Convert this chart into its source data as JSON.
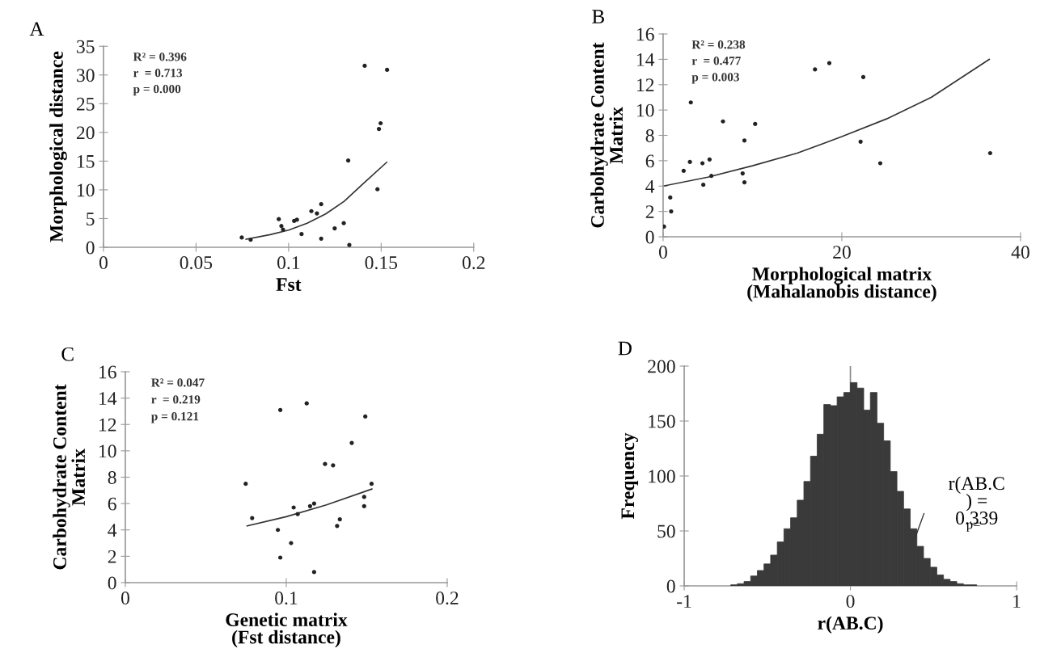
{
  "chart_data": [
    {
      "type": "scatter",
      "title": "A",
      "xlabel": "Fst",
      "ylabel": "Morphological distance",
      "xlim": [
        0,
        0.2
      ],
      "xticks": [
        0,
        0.05,
        0.1,
        0.15,
        0.2
      ],
      "ylim": [
        0,
        35
      ],
      "yticks": [
        0,
        5,
        10,
        15,
        20,
        25,
        30,
        35
      ],
      "grid": false,
      "annotations": [
        "R² = 0.396",
        "r  = 0.713",
        "p = 0.000"
      ],
      "series": [
        {
          "type": "scatter",
          "marker": "circle",
          "color": "#222222",
          "x": [
            0.0747,
            0.0795,
            0.0947,
            0.0961,
            0.097,
            0.103,
            0.1045,
            0.107,
            0.1123,
            0.1153,
            0.1176,
            0.1176,
            0.1249,
            0.1298,
            0.1322,
            0.1328,
            0.1411,
            0.148,
            0.1488,
            0.1497,
            0.1532
          ],
          "values": [
            1.7,
            1.3,
            4.9,
            3.7,
            3.1,
            4.6,
            4.8,
            2.3,
            6.3,
            5.9,
            7.5,
            1.5,
            3.3,
            4.2,
            15.1,
            0.4,
            31.6,
            10.1,
            20.6,
            21.6,
            30.9
          ]
        },
        {
          "type": "line",
          "color": "#333333",
          "x": [
            0.077,
            0.09,
            0.1,
            0.11,
            0.12,
            0.13,
            0.14,
            0.153
          ],
          "values": [
            1.4,
            2.2,
            3.0,
            4.2,
            5.8,
            8.0,
            11.0,
            14.8
          ]
        }
      ]
    },
    {
      "type": "scatter",
      "title": "B",
      "xlabel": "Morphological matrix\n(Mahalanobis distance)",
      "ylabel": "Carbohydrate Content\nMatrix",
      "xlim": [
        0,
        40
      ],
      "xticks": [
        0,
        20,
        40
      ],
      "ylim": [
        0,
        16
      ],
      "yticks": [
        0,
        2,
        4,
        6,
        8,
        10,
        12,
        14,
        16
      ],
      "grid": false,
      "annotations": [
        "R² = 0.238",
        "r  = 0.477",
        "p = 0.003"
      ],
      "series": [
        {
          "type": "scatter",
          "marker": "circle",
          "color": "#222222",
          "x": [
            0.1,
            0.8,
            0.9,
            2.3,
            3.0,
            3.1,
            4.4,
            4.5,
            5.2,
            5.4,
            6.7,
            8.9,
            9.1,
            9.1,
            10.3,
            17.0,
            18.6,
            22.1,
            22.4,
            24.3,
            36.6
          ],
          "values": [
            0.8,
            3.1,
            2.0,
            5.2,
            5.9,
            10.6,
            5.8,
            4.1,
            6.1,
            4.8,
            9.1,
            5.0,
            4.3,
            7.6,
            8.9,
            13.2,
            13.7,
            7.5,
            12.6,
            5.8,
            6.6
          ]
        },
        {
          "type": "line",
          "color": "#333333",
          "x": [
            0,
            5,
            10,
            15,
            20,
            25,
            30,
            36.5
          ],
          "values": [
            4.0,
            4.7,
            5.6,
            6.6,
            7.9,
            9.3,
            11.0,
            14.0
          ]
        }
      ]
    },
    {
      "type": "scatter",
      "title": "C",
      "xlabel": "Genetic matrix\n(Fst distance)",
      "ylabel": "Carbohydrate Content\nMatrix",
      "xlim": [
        0,
        0.2
      ],
      "xticks": [
        0,
        0.1,
        0.2
      ],
      "ylim": [
        0,
        16
      ],
      "yticks": [
        0,
        2,
        4,
        6,
        8,
        10,
        12,
        14,
        16
      ],
      "grid": false,
      "annotations": [
        "R² = 0.047",
        "r  = 0.219",
        "p = 0.121"
      ],
      "series": [
        {
          "type": "scatter",
          "marker": "circle",
          "color": "#222222",
          "x": [
            0.0748,
            0.0788,
            0.0948,
            0.0963,
            0.0963,
            0.103,
            0.1046,
            0.1071,
            0.1127,
            0.1148,
            0.1173,
            0.1173,
            0.1241,
            0.1291,
            0.1316,
            0.1333,
            0.1407,
            0.1484,
            0.1484,
            0.1491,
            0.153
          ],
          "values": [
            7.5,
            4.9,
            4.0,
            13.1,
            1.9,
            3.0,
            5.7,
            5.2,
            13.6,
            5.8,
            6.0,
            0.8,
            9.0,
            8.9,
            4.3,
            4.8,
            10.6,
            5.8,
            6.5,
            12.6,
            7.5
          ]
        },
        {
          "type": "line",
          "color": "#333333",
          "x": [
            0.0757,
            0.1,
            0.125,
            0.1532
          ],
          "values": [
            4.3,
            5.0,
            5.9,
            7.1
          ]
        }
      ]
    },
    {
      "type": "histogram",
      "title": "D",
      "xlabel": "r(AB.C)",
      "ylabel": "Frequency",
      "xlim": [
        -1,
        1
      ],
      "xticks": [
        -1,
        0,
        1
      ],
      "ylim": [
        0,
        200
      ],
      "yticks": [
        0,
        50,
        100,
        150,
        200
      ],
      "grid": false,
      "color": "#3a3a3a",
      "bins": [
        -0.72,
        -0.68,
        -0.64,
        -0.6,
        -0.56,
        -0.52,
        -0.48,
        -0.44,
        -0.4,
        -0.36,
        -0.32,
        -0.28,
        -0.24,
        -0.2,
        -0.16,
        -0.12,
        -0.08,
        -0.04,
        0.0,
        0.04,
        0.08,
        0.12,
        0.16,
        0.2,
        0.24,
        0.28,
        0.32,
        0.36,
        0.4,
        0.44,
        0.48,
        0.52,
        0.56,
        0.6,
        0.64,
        0.68,
        0.72,
        0.76
      ],
      "values": [
        1,
        2,
        4,
        9,
        14,
        20,
        28,
        40,
        52,
        62,
        78,
        95,
        118,
        138,
        165,
        164,
        172,
        176,
        185,
        180,
        160,
        176,
        148,
        132,
        104,
        86,
        70,
        52,
        36,
        25,
        17,
        10,
        6,
        4,
        2,
        1,
        1
      ],
      "ref_lines": [
        {
          "axis": "x",
          "value": 0,
          "color": "#888888"
        }
      ],
      "annotations": [
        {
          "text": "r(AB.C\n) =\n0.339",
          "x": 0.39,
          "y": 44
        },
        "p="
      ]
    }
  ]
}
